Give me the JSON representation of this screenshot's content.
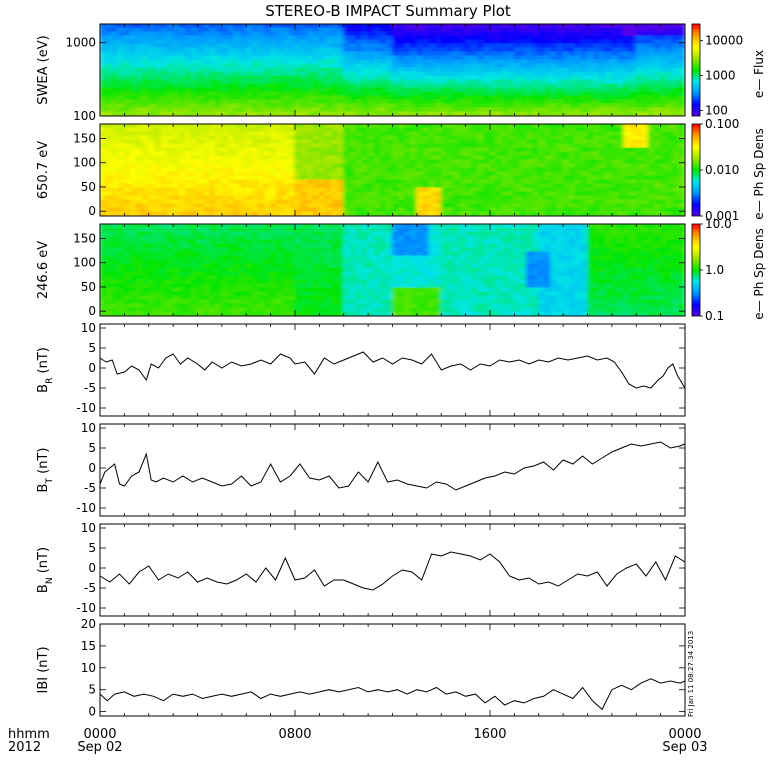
{
  "title": "STEREO-B IMPACT Summary Plot",
  "stamp": "Fri Jan 11 08:27:34 2013",
  "time_axis": {
    "hours": [
      0,
      8,
      16,
      24
    ],
    "top_labels": [
      "0000",
      "0800",
      "1600",
      "0000"
    ],
    "bottom_labels": [
      "Sep 02",
      "",
      "",
      "Sep 03"
    ],
    "left_caption_top": "hhmm",
    "left_caption_bottom": "2012"
  },
  "colors": {
    "trace": "#000000",
    "colormap": [
      "#5a00e6",
      "#0000ff",
      "#0096ff",
      "#00e6e6",
      "#00e600",
      "#a0e600",
      "#ffff00",
      "#ffa000",
      "#ff0000"
    ]
  },
  "chart_data": [
    {
      "type": "heatmap",
      "name": "swea",
      "ylabel": "SWEA (eV)",
      "yscale": "log",
      "ylim": [
        100,
        1800
      ],
      "yticks": [
        100,
        1000
      ],
      "ytick_labels": [
        "100",
        "1000"
      ],
      "cbar_label": "e— Flux",
      "cbar_scale": "log",
      "cbar_range": [
        70,
        30000
      ],
      "cbar_ticks": [
        100,
        1000,
        10000
      ],
      "cbar_tick_labels": [
        "100",
        "1000",
        "10000"
      ]
    },
    {
      "type": "heatmap",
      "name": "pad650",
      "ylabel": "650.7 eV",
      "yscale": "linear",
      "ylim": [
        -10,
        180
      ],
      "yticks": [
        0,
        50,
        100,
        150
      ],
      "ytick_labels": [
        "0",
        "50",
        "100",
        "150"
      ],
      "cbar_label": "e— Ph Sp Dens",
      "cbar_scale": "log",
      "cbar_range": [
        0.001,
        0.1
      ],
      "cbar_ticks": [
        0.001,
        0.01,
        0.1
      ],
      "cbar_tick_labels": [
        "0.001",
        "0.010",
        "0.100"
      ]
    },
    {
      "type": "heatmap",
      "name": "pad246",
      "ylabel": "246.6 eV",
      "yscale": "linear",
      "ylim": [
        -10,
        180
      ],
      "yticks": [
        0,
        50,
        100,
        150
      ],
      "ytick_labels": [
        "0",
        "50",
        "100",
        "150"
      ],
      "cbar_label": "e— Ph Sp Dens",
      "cbar_scale": "log",
      "cbar_range": [
        0.1,
        10
      ],
      "cbar_ticks": [
        0.1,
        1,
        10
      ],
      "cbar_tick_labels": [
        "0.1",
        "1.0",
        "10.0"
      ]
    },
    {
      "type": "line",
      "name": "br",
      "ylabel": "B",
      "ylabel_sub": "R",
      "ylabel_unit": " (nT)",
      "ylim": [
        -12,
        11
      ],
      "yticks": [
        -10,
        -5,
        0,
        5,
        10
      ],
      "ytick_labels": [
        "-10",
        "-5",
        "0",
        "5",
        "10"
      ],
      "series": [
        {
          "x": [
            0.0,
            0.25,
            0.5,
            0.7,
            1.0,
            1.3,
            1.6,
            1.9,
            2.1,
            2.4,
            2.7,
            3.0,
            3.3,
            3.6,
            4.0,
            4.3,
            4.6,
            5.0,
            5.4,
            5.8,
            6.2,
            6.6,
            7.0,
            7.4,
            7.8,
            8.0,
            8.4,
            8.8,
            9.2,
            9.6,
            10.0,
            10.4,
            10.8,
            11.2,
            11.6,
            12.0,
            12.4,
            12.8,
            13.2,
            13.6,
            14.0,
            14.4,
            14.8,
            15.2,
            15.6,
            16.0,
            16.4,
            16.8,
            17.2,
            17.6,
            18.0,
            18.4,
            18.8,
            19.2,
            19.6,
            20.0,
            20.4,
            20.8,
            21.1,
            21.4,
            21.7,
            22.0,
            22.3,
            22.6,
            22.9,
            23.1,
            23.3,
            23.5,
            23.7,
            24.0
          ],
          "y": [
            2.5,
            1.5,
            2.0,
            -1.5,
            -1.0,
            0.5,
            -0.5,
            -3.0,
            1.0,
            0.0,
            2.5,
            3.5,
            1.0,
            2.5,
            1.0,
            -0.5,
            1.5,
            0.0,
            1.5,
            0.5,
            1.0,
            2.0,
            1.0,
            3.5,
            2.5,
            1.0,
            1.5,
            -1.5,
            2.5,
            1.0,
            2.0,
            3.0,
            4.0,
            1.5,
            2.5,
            1.0,
            2.5,
            2.0,
            1.0,
            3.5,
            -0.5,
            0.5,
            1.0,
            -0.5,
            1.0,
            0.5,
            2.0,
            1.5,
            2.0,
            1.0,
            2.0,
            1.5,
            2.5,
            2.0,
            2.5,
            3.0,
            2.0,
            2.5,
            1.5,
            -1.0,
            -4.0,
            -5.0,
            -4.5,
            -5.0,
            -3.0,
            -2.0,
            0.0,
            1.0,
            -2.0,
            -5.0
          ]
        }
      ]
    },
    {
      "type": "line",
      "name": "bt",
      "ylabel": "B",
      "ylabel_sub": "T",
      "ylabel_unit": " (nT)",
      "ylim": [
        -12,
        11
      ],
      "yticks": [
        -10,
        -5,
        0,
        5,
        10
      ],
      "ytick_labels": [
        "-10",
        "-5",
        "0",
        "5",
        "10"
      ],
      "series": [
        {
          "x": [
            0.0,
            0.2,
            0.4,
            0.6,
            0.8,
            1.0,
            1.3,
            1.6,
            1.9,
            2.1,
            2.3,
            2.6,
            3.0,
            3.4,
            3.8,
            4.2,
            4.6,
            5.0,
            5.4,
            5.8,
            6.2,
            6.6,
            7.0,
            7.4,
            7.8,
            8.2,
            8.6,
            9.0,
            9.4,
            9.8,
            10.2,
            10.6,
            11.0,
            11.4,
            11.8,
            12.2,
            12.6,
            13.0,
            13.4,
            13.8,
            14.2,
            14.6,
            15.0,
            15.4,
            15.8,
            16.2,
            16.6,
            17.0,
            17.4,
            17.8,
            18.2,
            18.6,
            19.0,
            19.4,
            19.8,
            20.2,
            20.6,
            21.0,
            21.4,
            21.8,
            22.2,
            22.6,
            23.0,
            23.4,
            23.8,
            24.0
          ],
          "y": [
            -4.0,
            -1.0,
            0.0,
            1.0,
            -4.0,
            -4.5,
            -2.0,
            -1.0,
            3.5,
            -3.0,
            -3.5,
            -2.5,
            -3.5,
            -2.0,
            -3.5,
            -2.5,
            -3.5,
            -4.5,
            -4.0,
            -2.0,
            -4.5,
            -3.5,
            1.0,
            -3.5,
            -2.0,
            1.0,
            -2.5,
            -3.0,
            -2.0,
            -5.0,
            -4.5,
            -1.0,
            -3.5,
            1.5,
            -3.5,
            -3.0,
            -4.0,
            -4.5,
            -5.0,
            -3.5,
            -4.0,
            -5.5,
            -4.5,
            -3.5,
            -2.5,
            -2.0,
            -1.0,
            -1.5,
            0.0,
            0.5,
            1.5,
            -0.5,
            2.0,
            1.0,
            3.0,
            1.0,
            2.5,
            4.0,
            5.0,
            6.0,
            5.5,
            6.0,
            6.5,
            5.0,
            5.5,
            6.0
          ]
        }
      ]
    },
    {
      "type": "line",
      "name": "bn",
      "ylabel": "B",
      "ylabel_sub": "N",
      "ylabel_unit": " (nT)",
      "ylim": [
        -12,
        11
      ],
      "yticks": [
        -10,
        -5,
        0,
        5,
        10
      ],
      "ytick_labels": [
        "-10",
        "-5",
        "0",
        "5",
        "10"
      ],
      "series": [
        {
          "x": [
            0.0,
            0.4,
            0.8,
            1.2,
            1.6,
            2.0,
            2.4,
            2.8,
            3.2,
            3.6,
            4.0,
            4.4,
            4.8,
            5.2,
            5.6,
            6.0,
            6.4,
            6.8,
            7.2,
            7.6,
            8.0,
            8.4,
            8.8,
            9.2,
            9.6,
            10.0,
            10.4,
            10.8,
            11.2,
            11.6,
            12.0,
            12.4,
            12.8,
            13.2,
            13.6,
            14.0,
            14.4,
            14.8,
            15.2,
            15.6,
            16.0,
            16.4,
            16.8,
            17.2,
            17.6,
            18.0,
            18.4,
            18.8,
            19.2,
            19.6,
            20.0,
            20.4,
            20.8,
            21.2,
            21.6,
            22.0,
            22.4,
            22.8,
            23.2,
            23.6,
            24.0
          ],
          "y": [
            -2.0,
            -3.5,
            -1.5,
            -4.0,
            -1.0,
            0.5,
            -3.0,
            -1.5,
            -2.5,
            -1.0,
            -3.5,
            -2.5,
            -3.5,
            -4.0,
            -3.0,
            -1.5,
            -3.5,
            0.0,
            -3.0,
            2.5,
            -3.0,
            -2.5,
            -0.5,
            -4.5,
            -3.0,
            -3.0,
            -4.0,
            -5.0,
            -5.5,
            -4.0,
            -2.0,
            -0.5,
            -1.0,
            -3.0,
            3.5,
            3.0,
            4.0,
            3.5,
            3.0,
            2.0,
            3.5,
            1.5,
            -2.0,
            -3.0,
            -2.5,
            -4.0,
            -3.5,
            -4.5,
            -3.0,
            -1.5,
            -2.0,
            -1.0,
            -4.5,
            -1.5,
            0.0,
            1.0,
            -2.0,
            1.5,
            -3.0,
            3.0,
            1.5
          ]
        }
      ]
    },
    {
      "type": "line",
      "name": "bmag",
      "ylabel": "IBI (nT)",
      "ylim": [
        -1,
        20
      ],
      "yticks": [
        0,
        5,
        10,
        15,
        20
      ],
      "ytick_labels": [
        "0",
        "5",
        "10",
        "15",
        "20"
      ],
      "series": [
        {
          "x": [
            0.0,
            0.3,
            0.6,
            1.0,
            1.4,
            1.8,
            2.2,
            2.6,
            3.0,
            3.4,
            3.8,
            4.2,
            4.6,
            5.0,
            5.4,
            5.8,
            6.2,
            6.6,
            7.0,
            7.4,
            7.8,
            8.2,
            8.6,
            9.0,
            9.4,
            9.8,
            10.2,
            10.6,
            11.0,
            11.4,
            11.8,
            12.2,
            12.6,
            13.0,
            13.4,
            13.8,
            14.2,
            14.6,
            15.0,
            15.4,
            15.8,
            16.2,
            16.6,
            17.0,
            17.4,
            17.8,
            18.2,
            18.6,
            19.0,
            19.4,
            19.8,
            20.2,
            20.6,
            21.0,
            21.4,
            21.8,
            22.2,
            22.6,
            23.0,
            23.4,
            23.8,
            24.0
          ],
          "y": [
            4.0,
            2.5,
            4.0,
            4.5,
            3.5,
            4.0,
            3.5,
            2.5,
            4.0,
            3.5,
            4.0,
            3.0,
            3.5,
            4.0,
            3.5,
            4.0,
            4.5,
            3.0,
            4.0,
            3.5,
            4.0,
            4.5,
            4.0,
            4.5,
            5.0,
            4.5,
            5.0,
            5.5,
            4.5,
            5.0,
            4.5,
            5.0,
            4.0,
            5.0,
            4.5,
            5.5,
            4.0,
            4.5,
            3.5,
            4.0,
            2.0,
            3.5,
            1.5,
            2.5,
            2.0,
            3.0,
            3.5,
            5.0,
            4.0,
            3.0,
            5.5,
            2.5,
            0.5,
            5.0,
            6.0,
            5.0,
            6.5,
            7.5,
            6.5,
            7.0,
            6.5,
            7.0
          ]
        }
      ]
    }
  ]
}
